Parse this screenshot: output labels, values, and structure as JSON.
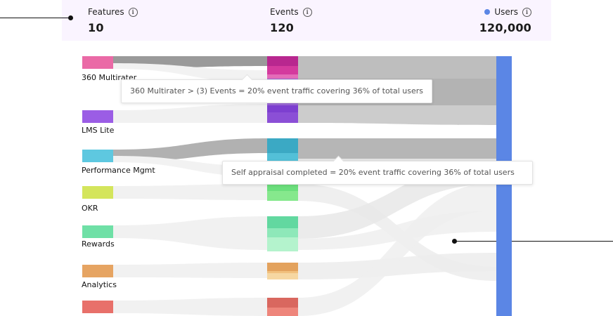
{
  "header": {
    "features": {
      "label": "Features",
      "value": "10"
    },
    "events": {
      "label": "Events",
      "value": "120"
    },
    "users": {
      "label": "Users",
      "value": "120,000",
      "dot_color": "#5b86e5"
    }
  },
  "info_icon_glyph": "i",
  "features": [
    {
      "name": "360 Multirater",
      "color": "#ea6aa6"
    },
    {
      "name": "LMS Lite",
      "color": "#9b5de5"
    },
    {
      "name": "Performance  Mgmt",
      "color": "#5ec8e0"
    },
    {
      "name": "OKR",
      "color": "#d4e55c"
    },
    {
      "name": "Rewards",
      "color": "#6fe0a6"
    },
    {
      "name": "Analytics",
      "color": "#e6a462"
    },
    {
      "name": "",
      "color": "#e8706a"
    }
  ],
  "event_colors": {
    "magenta": [
      "#b8278f",
      "#d43a9e",
      "#e46cb8"
    ],
    "purple": [
      "#9c6ad8",
      "#7d3fd0",
      "#8b4fd6"
    ],
    "teal": [
      "#3ba9c4",
      "#53c0d8"
    ],
    "green": [
      "#6bdf7c",
      "#86e88d"
    ],
    "mint": [
      "#62d8a0",
      "#8ee8b9",
      "#b4f3cd"
    ],
    "orange": [
      "#e3a25d",
      "#f1c07e",
      "#f6d7a2"
    ],
    "red": [
      "#d9675f",
      "#ee857b"
    ]
  },
  "users_bar_color": "#5b86e5",
  "tooltips": [
    {
      "text": "360 Multirater   > (3) Events = 20% event traffic covering 36% of total users"
    },
    {
      "text": "Self appraisal completed =  20% event traffic covering 36% of total users"
    }
  ]
}
